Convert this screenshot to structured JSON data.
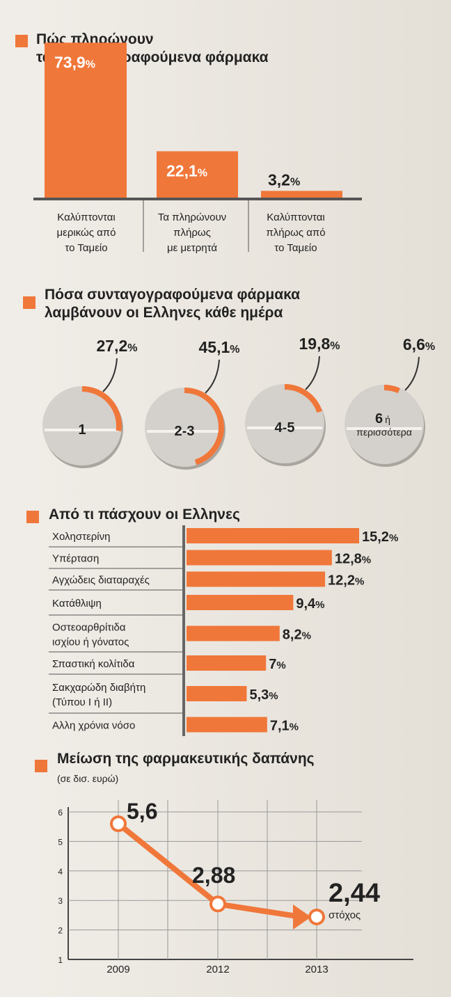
{
  "colors": {
    "accent": "#f0773a",
    "text": "#222222",
    "pill": "#d4d0cb",
    "grid": "#999999"
  },
  "chart_data": [
    {
      "type": "bar",
      "title_lines": [
        "Πώς πληρώνουν",
        "τα συνταγογραφούμενα φάρμακα"
      ],
      "categories": [
        [
          "Καλύπτονται",
          "μερικώς από",
          "το Ταμείο"
        ],
        [
          "Τα πληρώνουν",
          "πλήρως",
          "με μετρητά"
        ],
        [
          "Καλύπτονται",
          "πλήρως από",
          "το Ταμείο"
        ]
      ],
      "values": [
        73.9,
        22.1,
        3.2
      ],
      "value_labels": [
        "73,9",
        "22,1",
        "3,2"
      ],
      "unit": "%",
      "ylim": [
        0,
        100
      ]
    },
    {
      "type": "pie",
      "title_lines": [
        "Πόσα συνταγογραφούμενα φάρμακα",
        "λαμβάνουν οι Ελληνες κάθε ημέρα"
      ],
      "categories": [
        [
          "1"
        ],
        [
          "2-3"
        ],
        [
          "4-5"
        ],
        [
          "6",
          "ή",
          "περισσότερα"
        ]
      ],
      "values": [
        27.2,
        45.1,
        19.8,
        6.6
      ],
      "value_labels": [
        "27,2",
        "45,1",
        "19,8",
        "6,6"
      ],
      "unit": "%"
    },
    {
      "type": "bar",
      "orientation": "horizontal",
      "title_lines": [
        "Από τι πάσχουν οι Ελληνες"
      ],
      "categories": [
        [
          "Χοληστερίνη"
        ],
        [
          "Υπέρταση"
        ],
        [
          "Αγχώδεις διαταραχές"
        ],
        [
          "Κατάθλιψη"
        ],
        [
          "Οστεοαρθρίτιδα",
          "ισχίου ή γόνατος"
        ],
        [
          "Σπαστική κολίτιδα"
        ],
        [
          "Σακχαρώδη διαβήτη",
          "(Τύπου Ι ή ΙΙ)"
        ],
        [
          "Αλλη χρόνια νόσο"
        ]
      ],
      "values": [
        15.2,
        12.8,
        12.2,
        9.4,
        8.2,
        7.0,
        5.3,
        7.1
      ],
      "value_labels": [
        "15,2",
        "12,8",
        "12,2",
        "9,4",
        "8,2",
        "7",
        "5,3",
        "7,1"
      ],
      "unit": "%",
      "xlim": [
        0,
        15.2
      ]
    },
    {
      "type": "line",
      "title_lines": [
        "Μείωση της φαρμακευτικής δαπάνης"
      ],
      "subtitle": "(σε δισ. ευρώ)",
      "x": [
        "2009",
        "2012",
        "2013"
      ],
      "values": [
        5.6,
        2.88,
        2.44
      ],
      "value_labels": [
        "5,6",
        "2,88",
        "2,44"
      ],
      "annotation": "στόχος",
      "ylim": [
        1,
        6
      ],
      "yticks": [
        "1",
        "2",
        "3",
        "4",
        "5",
        "6"
      ],
      "grid": true
    }
  ]
}
